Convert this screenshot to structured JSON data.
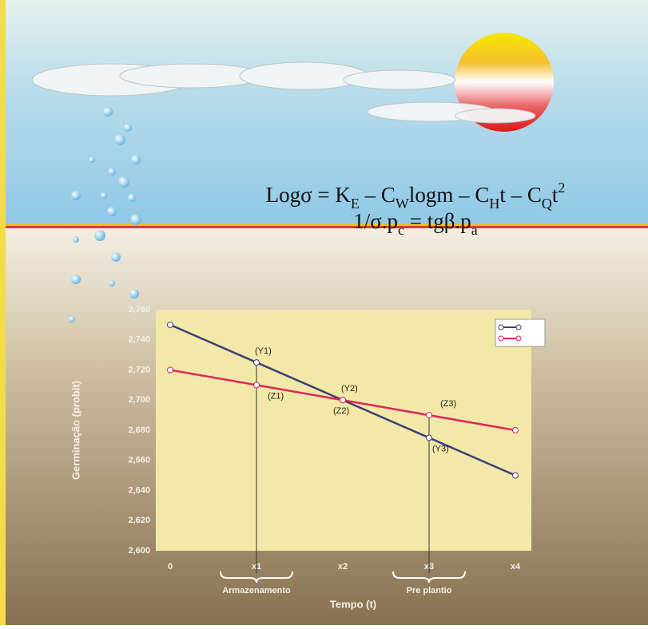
{
  "chart_data": {
    "type": "line",
    "x_label": "Tempo (t)",
    "y_label": "Germinação (probit)",
    "categories": [
      "0",
      "x1",
      "x2",
      "x3",
      "x4"
    ],
    "series": [
      {
        "color": "#3c3f78",
        "values": [
          2.75,
          2.725,
          2.7,
          2.675,
          2.65
        ],
        "point_labels": [
          null,
          "(Y1)",
          "(Y2)",
          "(Y3)",
          null
        ]
      },
      {
        "color": "#e0245a",
        "values": [
          2.72,
          2.71,
          2.7,
          2.69,
          2.68
        ],
        "point_labels": [
          null,
          "(Z1)",
          "(Z2)",
          "(Z3)",
          null
        ]
      }
    ],
    "ylim": [
      2.6,
      2.76
    ],
    "yticks": [
      {
        "value": 2.6,
        "label": "2,600"
      },
      {
        "value": 2.62,
        "label": "2,620"
      },
      {
        "value": 2.64,
        "label": "2,640"
      },
      {
        "value": 2.66,
        "label": "2,660"
      },
      {
        "value": 2.68,
        "label": "2,680"
      },
      {
        "value": 2.7,
        "label": "2,700"
      },
      {
        "value": 2.72,
        "label": "2,720"
      },
      {
        "value": 2.74,
        "label": "2,740"
      },
      {
        "value": 2.76,
        "label": "2,760"
      }
    ],
    "grid": false,
    "legend": "upper right",
    "bracket_labels": [
      "Armazenamento",
      "Pre plantio"
    ]
  },
  "formula": {
    "line1": [
      {
        "text": "Logσ = K"
      },
      {
        "sub": "E"
      },
      {
        "text": " – C"
      },
      {
        "sub": "W"
      },
      {
        "text": "logm – C"
      },
      {
        "sub": "H"
      },
      {
        "text": "t – C"
      },
      {
        "sub": "Q"
      },
      {
        "text": "t"
      },
      {
        "sup": "2"
      }
    ],
    "line2": [
      {
        "text": "1/σ.p"
      },
      {
        "sub": "c"
      },
      {
        "text": " = tgβ.p"
      },
      {
        "sub": "a"
      }
    ]
  }
}
